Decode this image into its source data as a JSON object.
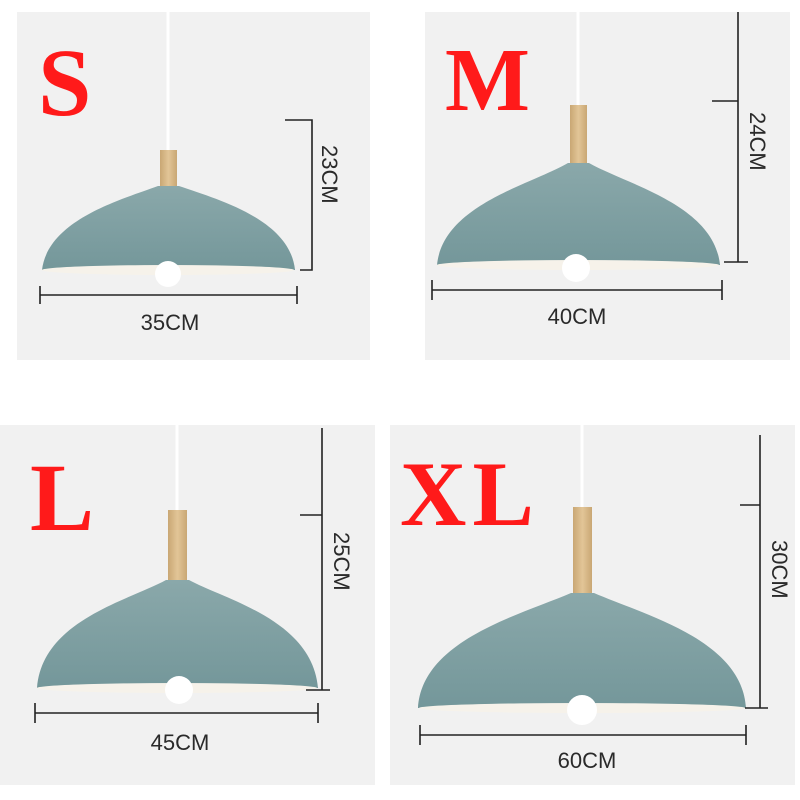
{
  "colors": {
    "panel_bg": "#f1f1f1",
    "shade": "#80a0a2",
    "wood": "#d9bb8c",
    "label_red": "#ff1a1a"
  },
  "variants": [
    {
      "size": "S",
      "width": "35CM",
      "height": "23CM"
    },
    {
      "size": "M",
      "width": "40CM",
      "height": "24CM"
    },
    {
      "size": "L",
      "width": "45CM",
      "height": "25CM"
    },
    {
      "size": "XL",
      "width": "60CM",
      "height": "30CM"
    }
  ]
}
